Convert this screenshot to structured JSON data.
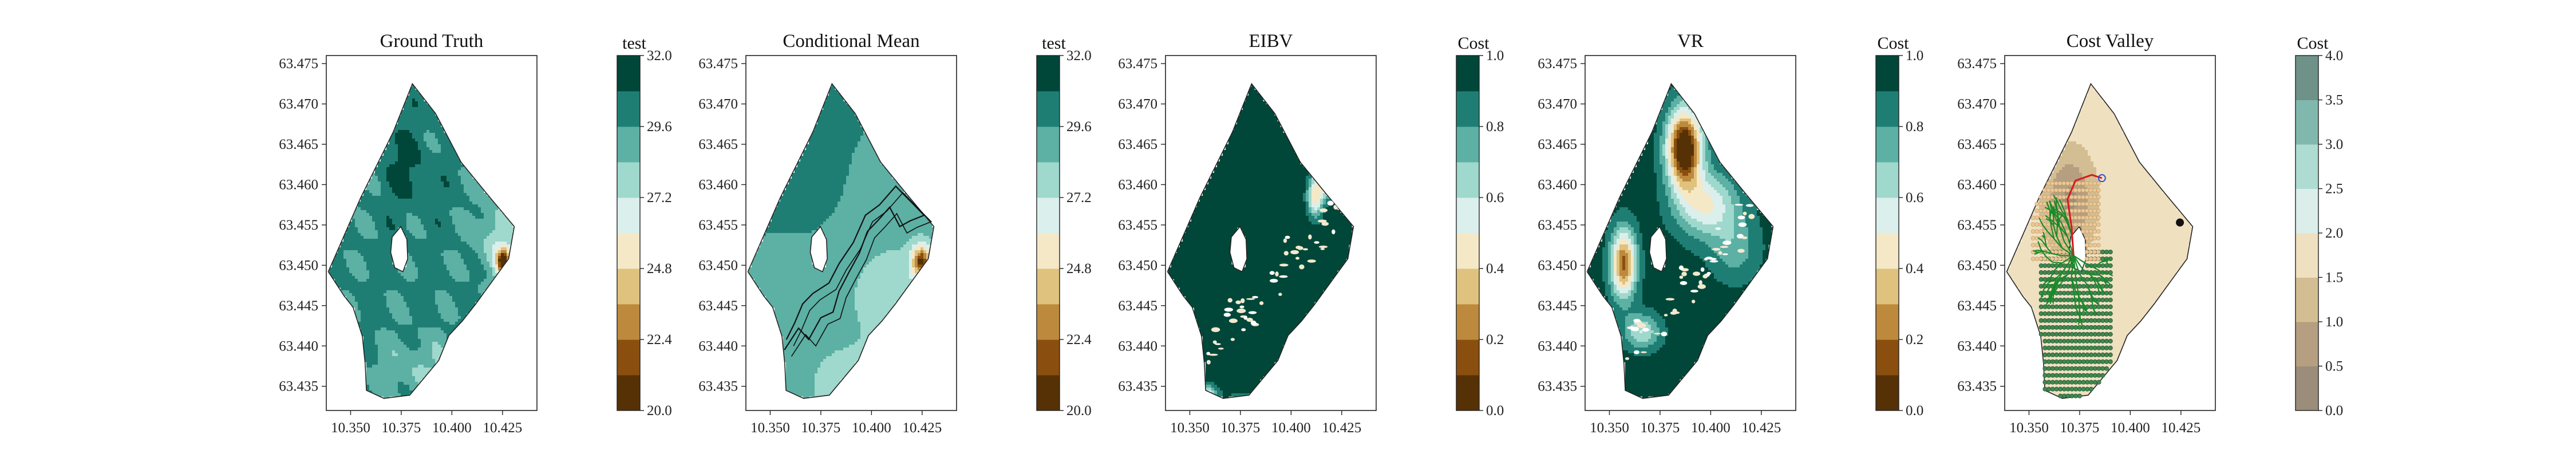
{
  "chart_data": [
    {
      "type": "heatmap",
      "title": "Ground Truth",
      "colorbar": {
        "label": "test",
        "ticks": [
          "20.0",
          "22.4",
          "24.8",
          "27.2",
          "29.6",
          "32.0"
        ],
        "range": [
          20.0,
          32.0
        ],
        "levels": 10,
        "palette": "BrBG"
      },
      "x_ticks": [
        "10.350",
        "10.375",
        "10.400",
        "10.425"
      ],
      "y_ticks": [
        "63.435",
        "63.440",
        "63.445",
        "63.450",
        "63.455",
        "63.460",
        "63.465",
        "63.470",
        "63.475"
      ],
      "xlim": [
        10.338,
        10.442
      ],
      "ylim": [
        63.432,
        63.476
      ],
      "field": "salinity-like field, mostly 28–31 with a low near (10.425, 63.451)"
    },
    {
      "type": "heatmap",
      "title": "Conditional Mean",
      "colorbar": {
        "label": "test",
        "ticks": [
          "20.0",
          "22.4",
          "24.8",
          "27.2",
          "29.6",
          "32.0"
        ],
        "range": [
          20.0,
          32.0
        ],
        "levels": 10,
        "palette": "BrBG"
      },
      "x_ticks": [
        "10.350",
        "10.375",
        "10.400",
        "10.425"
      ],
      "y_ticks": [
        "63.435",
        "63.440",
        "63.445",
        "63.450",
        "63.455",
        "63.460",
        "63.465",
        "63.470",
        "63.475"
      ],
      "xlim": [
        10.338,
        10.442
      ],
      "ylim": [
        63.432,
        63.476
      ],
      "overlay": "black sampling trajectory"
    },
    {
      "type": "heatmap",
      "title": "EIBV",
      "colorbar": {
        "label": "Cost",
        "ticks": [
          "0.0",
          "0.2",
          "0.4",
          "0.6",
          "0.8",
          "1.0"
        ],
        "range": [
          0.0,
          1.0
        ],
        "levels": 10,
        "palette": "BrBG"
      },
      "x_ticks": [
        "10.350",
        "10.375",
        "10.400",
        "10.425"
      ],
      "y_ticks": [
        "63.435",
        "63.440",
        "63.445",
        "63.450",
        "63.455",
        "63.460",
        "63.465",
        "63.470",
        "63.475"
      ],
      "xlim": [
        10.338,
        10.442
      ],
      "ylim": [
        63.432,
        63.476
      ],
      "field": "mostly 1.0 with a low-cost spot near (10.419, 63.461)"
    },
    {
      "type": "heatmap",
      "title": "VR",
      "colorbar": {
        "label": "Cost",
        "ticks": [
          "0.0",
          "0.2",
          "0.4",
          "0.6",
          "0.8",
          "1.0"
        ],
        "range": [
          0.0,
          1.0
        ],
        "levels": 10,
        "palette": "BrBG"
      },
      "x_ticks": [
        "10.350",
        "10.375",
        "10.400",
        "10.425"
      ],
      "y_ticks": [
        "63.435",
        "63.440",
        "63.445",
        "63.450",
        "63.455",
        "63.460",
        "63.465",
        "63.470",
        "63.475"
      ],
      "xlim": [
        10.338,
        10.442
      ],
      "ylim": [
        63.432,
        63.476
      ],
      "field": "low-cost valley near (10.387, 63.464) and (10.358, 63.450)"
    },
    {
      "type": "scatter",
      "title": "Cost Valley",
      "colorbar": {
        "label": "Cost",
        "ticks": [
          "0.0",
          "0.5",
          "1.0",
          "1.5",
          "2.0",
          "2.5",
          "3.0",
          "3.5",
          "4.0"
        ],
        "range": [
          0.0,
          4.0
        ],
        "levels": 8,
        "palette": "BrBG (light)"
      },
      "x_ticks": [
        "10.350",
        "10.375",
        "10.400",
        "10.425"
      ],
      "y_ticks": [
        "63.435",
        "63.440",
        "63.445",
        "63.450",
        "63.455",
        "63.460",
        "63.465",
        "63.470",
        "63.475"
      ],
      "xlim": [
        10.338,
        10.442
      ],
      "ylim": [
        63.432,
        63.476
      ],
      "overlay": "green RRT tree, red planned path, sampled grid points"
    }
  ]
}
